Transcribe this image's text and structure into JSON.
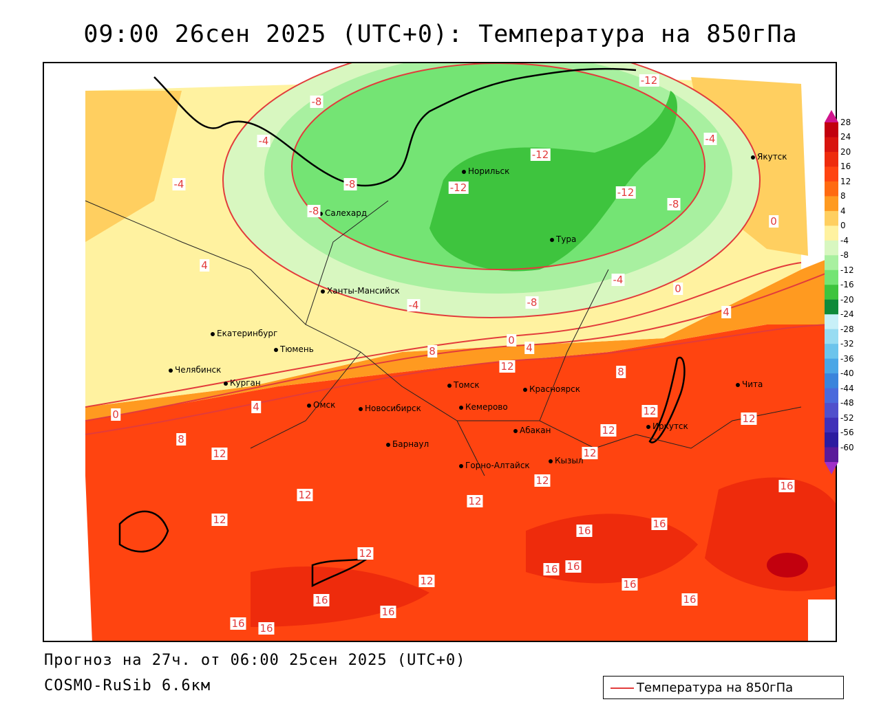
{
  "title": "09:00 26сен 2025 (UTC+0): Температура на 850гПа",
  "footer": {
    "forecast": "Прогноз на 27ч. от 06:00 25сен 2025 (UTC+0)",
    "model": "COSMO-RuSib 6.6км"
  },
  "legend": {
    "label": "Температура на 850гПа",
    "line_color": "#e23b3b"
  },
  "colorbar": {
    "ticks": [
      "28",
      "24",
      "20",
      "16",
      "12",
      "8",
      "4",
      "0",
      "-4",
      "-8",
      "-12",
      "-16",
      "-20",
      "-24",
      "-28",
      "-32",
      "-36",
      "-40",
      "-44",
      "-48",
      "-52",
      "-56",
      "-60"
    ],
    "colors": [
      "#c2000e",
      "#d8140e",
      "#ee2b0c",
      "#ff4410",
      "#ff6a10",
      "#ff9a20",
      "#ffcf60",
      "#fff2a0",
      "#d8f7c0",
      "#a8f0a0",
      "#74e474",
      "#3ec43e",
      "#0f8a3a",
      "#c8f0f8",
      "#98dcf2",
      "#6cc4ec",
      "#4aa6e6",
      "#3a84dc",
      "#4a6adc",
      "#5050cc",
      "#4030b8",
      "#2c1ca0",
      "#5a1a9a"
    ]
  },
  "cities": [
    {
      "name": "Норильск"
    },
    {
      "name": "Салехард"
    },
    {
      "name": "Тура"
    },
    {
      "name": "Якутск"
    },
    {
      "name": "Ханты-Мансийск"
    },
    {
      "name": "Екатеринбург"
    },
    {
      "name": "Тюмень"
    },
    {
      "name": "Челябинск"
    },
    {
      "name": "Курган"
    },
    {
      "name": "Омск"
    },
    {
      "name": "Новосибирск"
    },
    {
      "name": "Томск"
    },
    {
      "name": "Кемерово"
    },
    {
      "name": "Красноярск"
    },
    {
      "name": "Барнаул"
    },
    {
      "name": "Абакан"
    },
    {
      "name": "Горно-Алтайск"
    },
    {
      "name": "Кызыл"
    },
    {
      "name": "Иркутск"
    },
    {
      "name": "Чита"
    }
  ],
  "contour_labels": [
    "-12",
    "-8",
    "-4",
    "-12",
    "-8",
    "-12",
    "-12",
    "-8",
    "-4",
    "-4",
    "-8",
    "-4",
    "-8",
    "-4",
    "0",
    "0",
    "0",
    "0",
    "4",
    "4",
    "4",
    "4",
    "8",
    "8",
    "8",
    "12",
    "12",
    "12",
    "12",
    "12",
    "12",
    "12",
    "12",
    "12",
    "12",
    "12",
    "12",
    "16",
    "16",
    "16",
    "16",
    "16",
    "16",
    "16",
    "16",
    "16",
    "16",
    "16"
  ]
}
